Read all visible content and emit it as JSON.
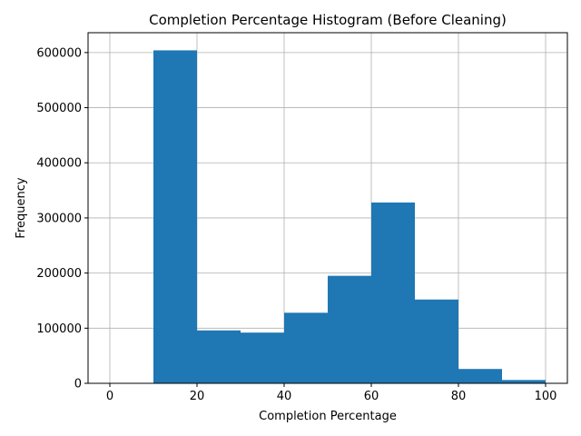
{
  "chart_data": {
    "type": "bar",
    "title": "Completion Percentage Histogram (Before Cleaning)",
    "xlabel": "Completion Percentage",
    "ylabel": "Frequency",
    "bins": [
      {
        "start": 0,
        "end": 10,
        "value": 0
      },
      {
        "start": 10,
        "end": 20,
        "value": 604000
      },
      {
        "start": 20,
        "end": 30,
        "value": 96000
      },
      {
        "start": 30,
        "end": 40,
        "value": 92000
      },
      {
        "start": 40,
        "end": 50,
        "value": 128000
      },
      {
        "start": 50,
        "end": 60,
        "value": 195000
      },
      {
        "start": 60,
        "end": 70,
        "value": 328000
      },
      {
        "start": 70,
        "end": 80,
        "value": 152000
      },
      {
        "start": 80,
        "end": 90,
        "value": 26000
      },
      {
        "start": 90,
        "end": 100,
        "value": 6000
      }
    ],
    "xlim": [
      -5,
      105
    ],
    "ylim": [
      0,
      636000
    ],
    "xticks": [
      0,
      20,
      40,
      60,
      80,
      100
    ],
    "yticks": [
      0,
      100000,
      200000,
      300000,
      400000,
      500000,
      600000
    ],
    "grid": true,
    "bar_color": "#1f77b4",
    "grid_color": "#b0b0b0"
  }
}
